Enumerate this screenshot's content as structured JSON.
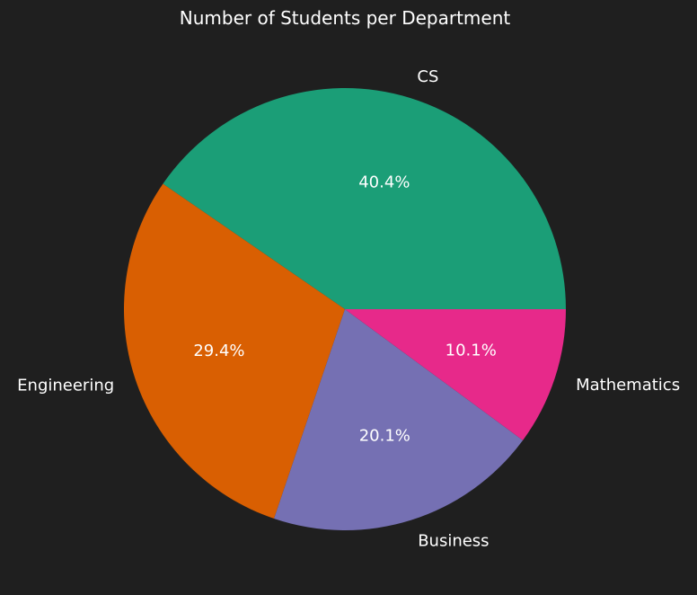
{
  "chart_data": {
    "type": "pie",
    "title": "Number of Students per Department",
    "categories": [
      "CS",
      "Engineering",
      "Business",
      "Mathematics"
    ],
    "values": [
      40.4,
      29.4,
      20.1,
      10.1
    ],
    "value_labels": [
      "40.4%",
      "29.4%",
      "20.1%",
      "10.1%"
    ],
    "colors": [
      "#1b9e77",
      "#d95f02",
      "#7570b3",
      "#e7298a"
    ],
    "start_angle_deg": 0,
    "direction": "counterclockwise",
    "background": "#1f1f1f",
    "text_color": "#ffffff"
  }
}
